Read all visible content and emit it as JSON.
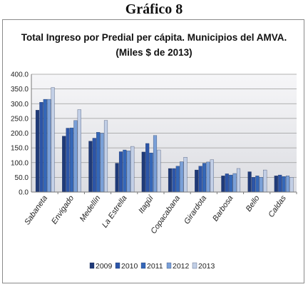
{
  "heading": "Gráfico 8",
  "chart_data": {
    "type": "bar",
    "title_line1": "Total Ingreso por Predial per cápita. Municipios del AMVA.",
    "title_line2": "(Miles $ de 2013)",
    "categories": [
      "Sabaneta",
      "Envigado",
      "Medellín",
      "La Estrella",
      "Itagüí",
      "Copacabana",
      "Girardota",
      "Barbosa",
      "Bello",
      "Caldas"
    ],
    "series": [
      {
        "name": "2009",
        "color": "#1f3a78",
        "values": [
          278,
          190,
          173,
          98,
          136,
          80,
          75,
          55,
          69,
          55
        ]
      },
      {
        "name": "2010",
        "color": "#2c55a8",
        "values": [
          305,
          217,
          183,
          137,
          165,
          80,
          88,
          62,
          50,
          58
        ]
      },
      {
        "name": "2011",
        "color": "#3467b8",
        "values": [
          315,
          218,
          203,
          143,
          133,
          88,
          98,
          58,
          55,
          53
        ]
      },
      {
        "name": "2012",
        "color": "#7aa0d8",
        "values": [
          315,
          243,
          200,
          140,
          192,
          103,
          102,
          63,
          50,
          55
        ]
      },
      {
        "name": "2013",
        "color": "#c2cfe6",
        "values": [
          355,
          280,
          243,
          155,
          143,
          118,
          110,
          80,
          75,
          50
        ]
      }
    ],
    "y_ticks": [
      "0.0",
      "50.0",
      "100.0",
      "150.0",
      "200.0",
      "250.0",
      "300.0",
      "350.0",
      "400.0"
    ],
    "ylim": [
      0,
      400
    ],
    "grid": true,
    "legend": "bottom"
  }
}
